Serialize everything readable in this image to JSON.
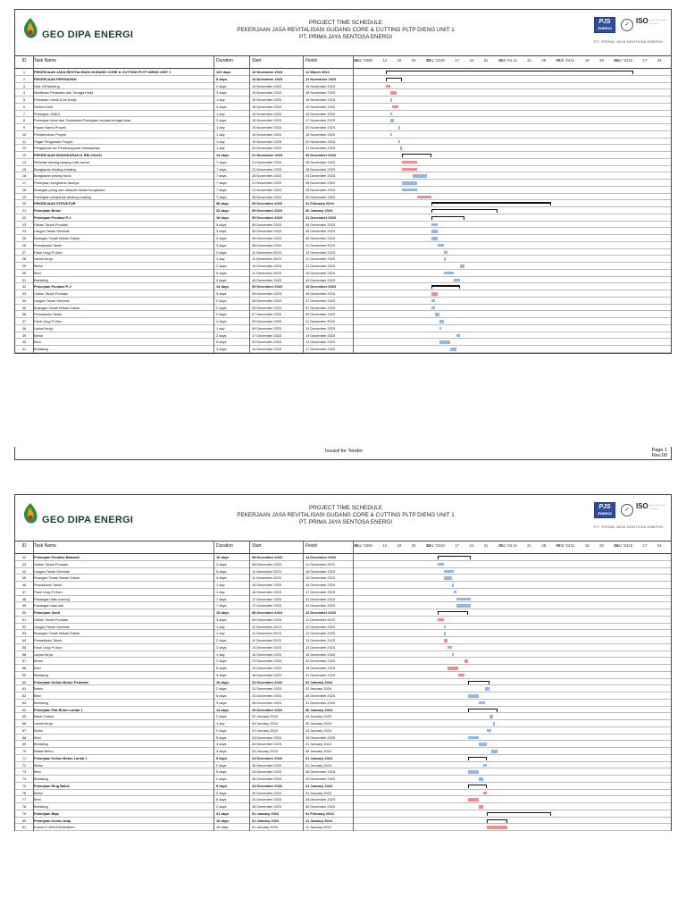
{
  "header": {
    "company": "GEO DIPA ENERGI",
    "title_lines": [
      "PROJECT TIME SCHEDULE",
      "PEKERJAAN JASA REVITALISASI GUDANG CORE & CUTTING PLTP DIENG UNIT 1",
      "PT. PRIMA JAYA SENTOSA ENERGI"
    ],
    "pjs_line1": "PJS",
    "pjs_line2": "ENERGI",
    "iso": "ISO",
    "company_small": "PT. PRIMA JAYA SENTOSA ENERGI"
  },
  "columns": {
    "id": "ID",
    "task": "Task Name",
    "duration": "Duration",
    "start": "Start",
    "finish": "Finish"
  },
  "timeline": {
    "months": [
      "Nov '23",
      "Dec '23",
      "Jan '24",
      "Feb '24",
      "Mar '24"
    ],
    "days": [
      "29",
      "05",
      "12",
      "19",
      "26",
      "03",
      "10",
      "17",
      "24",
      "31",
      "07",
      "14",
      "21",
      "28",
      "04",
      "11",
      "18",
      "25",
      "03",
      "10",
      "17",
      "24"
    ]
  },
  "page1": {
    "footer_center": "Issued for Tender",
    "page_label": "Page 1",
    "rev": "Rev.00",
    "rows": [
      {
        "id": "1",
        "task": "PEKERJAAN JASA REVITALISASI GUDANG CORE & CUTTING PLTP DIENG UNIT 1",
        "dur": "120 days",
        "start": "13 November 2023",
        "finish": "12 March 2024",
        "bold": true,
        "kind": "br",
        "s": 13,
        "e": 133
      },
      {
        "id": "2",
        "task": "PEKERJAAN PERSIAPAN",
        "dur": "8 days",
        "start": "13 November 2023",
        "finish": "21 November 2023",
        "bold": true,
        "kind": "br",
        "s": 13,
        "e": 21
      },
      {
        "id": "3",
        "task": "Kick-Off Meeting",
        "dur": "2 days",
        "start": "13 November 2023",
        "finish": "15 November 2023",
        "kind": "r",
        "s": 13,
        "e": 15
      },
      {
        "id": "4",
        "task": "Mobilisasi Peralatan dan Tenaga Kerja",
        "dur": "3 days",
        "start": "15 November 2023",
        "finish": "18 November 2023",
        "kind": "r",
        "s": 15,
        "e": 18
      },
      {
        "id": "5",
        "task": "Pemasan Listrik & Air Kerja",
        "dur": "1 day",
        "start": "15 November 2023",
        "finish": "16 November 2023",
        "kind": "b",
        "s": 15,
        "e": 16
      },
      {
        "id": "6",
        "task": "Direksi Keet",
        "dur": "3 days",
        "start": "16 November 2023",
        "finish": "19 November 2023",
        "kind": "r",
        "s": 16,
        "e": 19
      },
      {
        "id": "7",
        "task": "Pekerjaan SMK3",
        "dur": "1 day",
        "start": "15 November 2023",
        "finish": "16 November 2023",
        "kind": "b",
        "s": 15,
        "e": 16
      },
      {
        "id": "8",
        "task": "Pekerjaan Awal dan Sosialisasi Pekerjaan kepada tenaga lokal",
        "dur": "2 days",
        "start": "15 November 2023",
        "finish": "17 November 2023",
        "kind": "b",
        "s": 15,
        "e": 17
      },
      {
        "id": "9",
        "task": "Papan Nama Proyek",
        "dur": "1 day",
        "start": "19 November 2023",
        "finish": "20 November 2023",
        "kind": "b",
        "s": 19,
        "e": 20
      },
      {
        "id": "10",
        "task": "Pembersihan Proyek",
        "dur": "1 day",
        "start": "15 November 2023",
        "finish": "16 November 2023",
        "kind": "b",
        "s": 15,
        "e": 16
      },
      {
        "id": "11",
        "task": "Pagar Pengaman Proyek",
        "dur": "1 day",
        "start": "19 November 2023",
        "finish": "20 November 2023",
        "kind": "r",
        "s": 19,
        "e": 20
      },
      {
        "id": "12",
        "task": "Pengaturan arr Pembangunan bekasipelas",
        "dur": "1 day",
        "start": "20 November 2023",
        "finish": "21 November 2023",
        "kind": "r",
        "s": 20,
        "e": 21
      },
      {
        "id": "13",
        "task": "PEKERJAAN BONGKARAN & RELOKASI",
        "dur": "14 days",
        "start": "21 November 2023",
        "finish": "05 December 2023",
        "bold": true,
        "kind": "br",
        "s": 21,
        "e": 35
      },
      {
        "id": "14",
        "task": "Relokasi barang-barang milik owner",
        "dur": "7 days",
        "start": "21 November 2023",
        "finish": "28 November 2023",
        "kind": "r",
        "s": 21,
        "e": 28
      },
      {
        "id": "15",
        "task": "Bongkaran dinding existing",
        "dur": "7 days",
        "start": "21 November 2023",
        "finish": "28 November 2023",
        "kind": "r",
        "s": 21,
        "e": 28
      },
      {
        "id": "16",
        "task": "Bongkaran paving block",
        "dur": "7 days",
        "start": "26 November 2023",
        "finish": "03 December 2023",
        "kind": "b",
        "s": 26,
        "e": 33
      },
      {
        "id": "17",
        "task": "Pekerjaan bongkaran lainnya",
        "dur": "7 days",
        "start": "21 November 2023",
        "finish": "28 November 2023",
        "kind": "b",
        "s": 21,
        "e": 28
      },
      {
        "id": "18",
        "task": "Buangan puing dan sampah bekas bongkaran",
        "dur": "7 days",
        "start": "21 November 2023",
        "finish": "28 November 2023",
        "kind": "b",
        "s": 21,
        "e": 28
      },
      {
        "id": "19",
        "task": "Pekerjaan perapihan dinding existing",
        "dur": "7 days",
        "start": "28 November 2023",
        "finish": "05 December 2023",
        "kind": "r",
        "s": 28,
        "e": 35
      },
      {
        "id": "20",
        "task": "PEKERJAAN STRUKTUR",
        "dur": "58 days",
        "start": "05 December 2023",
        "finish": "01 February 2024",
        "bold": true,
        "kind": "br",
        "s": 35,
        "e": 93
      },
      {
        "id": "21",
        "task": "Pekerjaan Beton",
        "dur": "32 days",
        "start": "05 December 2023",
        "finish": "06 January 2024",
        "bold": true,
        "kind": "br",
        "s": 35,
        "e": 67
      },
      {
        "id": "22",
        "task": "Pekerjaan Pondasi P-1",
        "dur": "16 days",
        "start": "05 December 2023",
        "finish": "21 December 2023",
        "bold": true,
        "kind": "br",
        "s": 35,
        "e": 51
      },
      {
        "id": "23",
        "task": "Galian Tanah Pondasi",
        "dur": "3 days",
        "start": "05 December 2023",
        "finish": "08 December 2023",
        "kind": "b",
        "s": 35,
        "e": 38
      },
      {
        "id": "24",
        "task": "Urugan Tanah Kembali",
        "dur": "3 days",
        "start": "05 December 2023",
        "finish": "08 December 2023",
        "kind": "b",
        "s": 35,
        "e": 38
      },
      {
        "id": "25",
        "task": "Buangan Tanah Bekas Galian",
        "dur": "3 days",
        "start": "05 December 2023",
        "finish": "08 December 2023",
        "kind": "b",
        "s": 35,
        "e": 38
      },
      {
        "id": "26",
        "task": "Pemadatan Tanah",
        "dur": "3 days",
        "start": "08 December 2023",
        "finish": "11 December 2023",
        "kind": "b",
        "s": 38,
        "e": 41
      },
      {
        "id": "27",
        "task": "Pasir Urug P=5cm",
        "dur": "2 days",
        "start": "11 December 2023",
        "finish": "13 December 2023",
        "kind": "b",
        "s": 41,
        "e": 43
      },
      {
        "id": "28",
        "task": "Lantai Kerja",
        "dur": "1 day",
        "start": "11 December 2023",
        "finish": "12 December 2023",
        "kind": "b",
        "s": 41,
        "e": 42
      },
      {
        "id": "29",
        "task": "Beton",
        "dur": "2 days",
        "start": "19 December 2023",
        "finish": "21 December 2023",
        "kind": "b",
        "s": 49,
        "e": 51
      },
      {
        "id": "30",
        "task": "Besi",
        "dur": "5 days",
        "start": "11 December 2023",
        "finish": "16 December 2023",
        "kind": "b",
        "s": 41,
        "e": 46
      },
      {
        "id": "31",
        "task": "Bekisting",
        "dur": "3 days",
        "start": "16 December 2023",
        "finish": "19 December 2023",
        "kind": "b",
        "s": 46,
        "e": 49
      },
      {
        "id": "32",
        "task": "Pekerjaan Pondasi P-2",
        "dur": "14 days",
        "start": "05 December 2023",
        "finish": "19 December 2023",
        "bold": true,
        "kind": "br",
        "s": 35,
        "e": 49
      },
      {
        "id": "33",
        "task": "Galian Tanah Pondasi",
        "dur": "3 days",
        "start": "05 December 2023",
        "finish": "08 December 2023",
        "kind": "r",
        "s": 35,
        "e": 38
      },
      {
        "id": "34",
        "task": "Urugan Tanah Kembali",
        "dur": "2 days",
        "start": "05 December 2023",
        "finish": "07 December 2023",
        "kind": "b",
        "s": 35,
        "e": 37
      },
      {
        "id": "35",
        "task": "Buangan Tanah Bekas Galian",
        "dur": "2 days",
        "start": "05 December 2023",
        "finish": "07 December 2023",
        "kind": "b",
        "s": 35,
        "e": 37
      },
      {
        "id": "36",
        "task": "Pemadatan Tanah",
        "dur": "2 days",
        "start": "07 December 2023",
        "finish": "09 December 2023",
        "kind": "b",
        "s": 37,
        "e": 39
      },
      {
        "id": "37",
        "task": "Pasir Urug P=5cm",
        "dur": "2 days",
        "start": "09 December 2023",
        "finish": "11 December 2023",
        "kind": "b",
        "s": 39,
        "e": 41
      },
      {
        "id": "38",
        "task": "Lantai Kerja",
        "dur": "1 day",
        "start": "09 December 2023",
        "finish": "10 December 2023",
        "kind": "b",
        "s": 39,
        "e": 40
      },
      {
        "id": "39",
        "task": "Beton",
        "dur": "2 days",
        "start": "17 December 2023",
        "finish": "19 December 2023",
        "kind": "b",
        "s": 47,
        "e": 49
      },
      {
        "id": "40",
        "task": "Besi",
        "dur": "5 days",
        "start": "09 December 2023",
        "finish": "14 December 2023",
        "kind": "b",
        "s": 39,
        "e": 44
      },
      {
        "id": "41",
        "task": "Bekisting",
        "dur": "3 days",
        "start": "14 December 2023",
        "finish": "17 December 2023",
        "kind": "b",
        "s": 44,
        "e": 47
      }
    ]
  },
  "page2": {
    "rows": [
      {
        "id": "42",
        "task": "Pekerjaan Pondasi Batukali",
        "dur": "16 days",
        "start": "08 December 2023",
        "finish": "24 December 2023",
        "bold": true,
        "kind": "br",
        "s": 38,
        "e": 54
      },
      {
        "id": "43",
        "task": "Galian Tanah Pondasi",
        "dur": "3 days",
        "start": "08 December 2023",
        "finish": "11 December 2023",
        "kind": "b",
        "s": 38,
        "e": 41
      },
      {
        "id": "44",
        "task": "Urugan Tanah Kembali",
        "dur": "5 days",
        "start": "11 December 2023",
        "finish": "16 December 2023",
        "kind": "b",
        "s": 41,
        "e": 46
      },
      {
        "id": "45",
        "task": "Buangan Tanah Bekas Galian",
        "dur": "4 days",
        "start": "11 December 2023",
        "finish": "15 December 2023",
        "kind": "b",
        "s": 41,
        "e": 45
      },
      {
        "id": "46",
        "task": "Pemadatan Tanah",
        "dur": "1 day",
        "start": "15 December 2023",
        "finish": "16 December 2023",
        "kind": "b",
        "s": 45,
        "e": 46
      },
      {
        "id": "47",
        "task": "Pasir Urug P=5cm",
        "dur": "1 day",
        "start": "16 December 2023",
        "finish": "17 December 2023",
        "kind": "b",
        "s": 46,
        "e": 47
      },
      {
        "id": "48",
        "task": "Pasangan batu kosong",
        "dur": "7 days",
        "start": "17 December 2023",
        "finish": "24 December 2023",
        "kind": "b",
        "s": 47,
        "e": 54
      },
      {
        "id": "49",
        "task": "Pasangan batu kali",
        "dur": "7 days",
        "start": "17 December 2023",
        "finish": "24 December 2023",
        "kind": "b",
        "s": 47,
        "e": 54
      },
      {
        "id": "50",
        "task": "Pekerjaan Sloof",
        "dur": "15 days",
        "start": "08 December 2023",
        "finish": "23 December 2023",
        "bold": true,
        "kind": "br",
        "s": 38,
        "e": 53
      },
      {
        "id": "51",
        "task": "Galian Tanah Pondasi",
        "dur": "3 days",
        "start": "08 December 2023",
        "finish": "11 December 2023",
        "kind": "r",
        "s": 38,
        "e": 41
      },
      {
        "id": "52",
        "task": "Urugan Tanah Kembali",
        "dur": "1 day",
        "start": "11 December 2023",
        "finish": "12 December 2023",
        "kind": "b",
        "s": 41,
        "e": 42
      },
      {
        "id": "53",
        "task": "Buangan Tanah Bekas Galian",
        "dur": "1 day",
        "start": "11 December 2023",
        "finish": "12 December 2023",
        "kind": "b",
        "s": 41,
        "e": 42
      },
      {
        "id": "54",
        "task": "Pemadatan Tanah",
        "dur": "2 days",
        "start": "11 December 2023",
        "finish": "13 December 2023",
        "kind": "r",
        "s": 41,
        "e": 43
      },
      {
        "id": "55",
        "task": "Pasir Urug P=5cm",
        "dur": "2 days",
        "start": "13 December 2023",
        "finish": "15 December 2023",
        "kind": "b",
        "s": 43,
        "e": 45
      },
      {
        "id": "56",
        "task": "Lantai Kerja",
        "dur": "1 day",
        "start": "15 December 2023",
        "finish": "16 December 2023",
        "kind": "b",
        "s": 45,
        "e": 46
      },
      {
        "id": "57",
        "task": "Beton",
        "dur": "2 days",
        "start": "21 December 2023",
        "finish": "23 December 2023",
        "kind": "r",
        "s": 51,
        "e": 53
      },
      {
        "id": "58",
        "task": "Besi",
        "dur": "5 days",
        "start": "13 December 2023",
        "finish": "18 December 2023",
        "kind": "r",
        "s": 43,
        "e": 48
      },
      {
        "id": "59",
        "task": "Bekisting",
        "dur": "3 days",
        "start": "18 December 2023",
        "finish": "21 December 2023",
        "kind": "r",
        "s": 48,
        "e": 51
      },
      {
        "id": "60",
        "task": "Pekerjaan Kolom Beton Pedestal",
        "dur": "10 days",
        "start": "23 December 2023",
        "finish": "02 January 2024",
        "bold": true,
        "kind": "br",
        "s": 53,
        "e": 63
      },
      {
        "id": "61",
        "task": "Beton",
        "dur": "2 days",
        "start": "31 December 2023",
        "finish": "02 January 2024",
        "kind": "b",
        "s": 61,
        "e": 63
      },
      {
        "id": "62",
        "task": "Besi",
        "dur": "5 days",
        "start": "23 December 2023",
        "finish": "28 December 2023",
        "kind": "b",
        "s": 53,
        "e": 58
      },
      {
        "id": "63",
        "task": "Bekisting",
        "dur": "3 days",
        "start": "28 December 2023",
        "finish": "31 December 2023",
        "kind": "b",
        "s": 58,
        "e": 61
      },
      {
        "id": "64",
        "task": "Pekerjaan Plat Beton Lantai 1",
        "dur": "14 days",
        "start": "23 December 2023",
        "finish": "06 January 2024",
        "bold": true,
        "kind": "br",
        "s": 53,
        "e": 67
      },
      {
        "id": "65",
        "task": "Base Coarse",
        "dur": "2 days",
        "start": "02 January 2024",
        "finish": "04 January 2024",
        "kind": "b",
        "s": 63,
        "e": 65
      },
      {
        "id": "66",
        "task": "Lantai Kerja",
        "dur": "1 day",
        "start": "04 January 2024",
        "finish": "05 January 2024",
        "kind": "b",
        "s": 65,
        "e": 66
      },
      {
        "id": "67",
        "task": "Beton",
        "dur": "2 days",
        "start": "01 January 2024",
        "finish": "03 January 2024",
        "kind": "b",
        "s": 62,
        "e": 64
      },
      {
        "id": "68",
        "task": "Besi",
        "dur": "5 days",
        "start": "23 December 2023",
        "finish": "28 December 2023",
        "kind": "b",
        "s": 53,
        "e": 58
      },
      {
        "id": "69",
        "task": "Bekisting",
        "dur": "4 days",
        "start": "28 December 2023",
        "finish": "01 January 2024",
        "kind": "b",
        "s": 58,
        "e": 62
      },
      {
        "id": "70",
        "task": "Rabat Beton",
        "dur": "3 days",
        "start": "03 January 2024",
        "finish": "06 January 2024",
        "kind": "b",
        "s": 64,
        "e": 67
      },
      {
        "id": "71",
        "task": "Pekerjaan Kolom Beton Lantai 1",
        "dur": "9 days",
        "start": "23 December 2023",
        "finish": "01 January 2024",
        "bold": true,
        "kind": "br",
        "s": 53,
        "e": 62
      },
      {
        "id": "72",
        "task": "Beton",
        "dur": "2 days",
        "start": "30 December 2023",
        "finish": "01 January 2024",
        "kind": "b",
        "s": 60,
        "e": 62
      },
      {
        "id": "73",
        "task": "Besi",
        "dur": "5 days",
        "start": "23 December 2023",
        "finish": "28 December 2023",
        "kind": "b",
        "s": 53,
        "e": 58
      },
      {
        "id": "74",
        "task": "Bekisting",
        "dur": "2 days",
        "start": "28 December 2023",
        "finish": "30 December 2023",
        "kind": "b",
        "s": 58,
        "e": 60
      },
      {
        "id": "75",
        "task": "Pekerjaan Ring Balok",
        "dur": "9 days",
        "start": "23 December 2023",
        "finish": "01 January 2024",
        "bold": true,
        "kind": "br",
        "s": 53,
        "e": 62
      },
      {
        "id": "76",
        "task": "Beton",
        "dur": "2 days",
        "start": "30 December 2023",
        "finish": "01 January 2024",
        "kind": "r",
        "s": 60,
        "e": 62
      },
      {
        "id": "77",
        "task": "Besi",
        "dur": "5 days",
        "start": "23 December 2023",
        "finish": "28 December 2023",
        "kind": "r",
        "s": 53,
        "e": 58
      },
      {
        "id": "78",
        "task": "Bekisting",
        "dur": "2 days",
        "start": "28 December 2023",
        "finish": "30 December 2023",
        "kind": "r",
        "s": 58,
        "e": 60
      },
      {
        "id": "79",
        "task": "Pekerjaan Baja",
        "dur": "31 days",
        "start": "01 January 2024",
        "finish": "01 February 2024",
        "bold": true,
        "kind": "br",
        "s": 62,
        "e": 93
      },
      {
        "id": "80",
        "task": "Pekerjaan Kolom Atap",
        "dur": "10 days",
        "start": "01 January 2024",
        "finish": "11 January 2024",
        "bold": true,
        "kind": "br",
        "s": 62,
        "e": 72
      },
      {
        "id": "81",
        "task": "Kolom H 100x100x6x8mm",
        "dur": "10 days",
        "start": "01 January 2024",
        "finish": "11 January 2024",
        "kind": "r",
        "s": 62,
        "e": 72
      }
    ]
  }
}
